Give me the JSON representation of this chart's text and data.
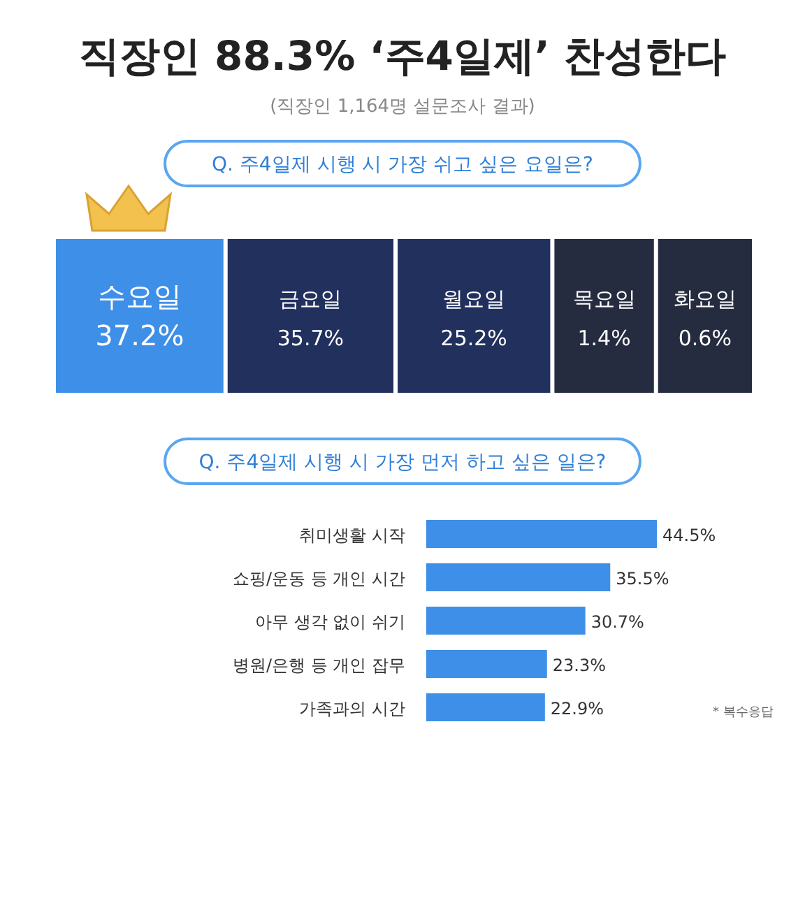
{
  "chart_data": [
    {
      "type": "other",
      "title": "직장인 88.3% ‘주4일제’ 찬성한다",
      "subtitle": "(직장인 1,164명 설문조사 결과)"
    },
    {
      "type": "other",
      "title": "Q. 주4일제 시행 시 가장 쉬고 싶은 요일은?",
      "categories": [
        "수요일",
        "금요일",
        "월요일",
        "목요일",
        "화요일"
      ],
      "values": [
        37.2,
        35.7,
        25.2,
        1.4,
        0.6
      ],
      "value_labels": [
        "37.2%",
        "35.7%",
        "25.2%",
        "1.4%",
        "0.6%"
      ],
      "colors": [
        "#3d8fe8",
        "#22305e",
        "#22305e",
        "#262c40",
        "#262c40"
      ]
    },
    {
      "type": "bar",
      "orientation": "horizontal",
      "title": "Q. 주4일제 시행 시 가장 먼저 하고 싶은 일은?",
      "categories": [
        "취미생활 시작",
        "쇼핑/운동 등 개인 시간",
        "아무 생각 없이 쉬기",
        "병원/은행 등 개인 잡무",
        "가족과의 시간"
      ],
      "values": [
        44.5,
        35.5,
        30.7,
        23.3,
        22.9
      ],
      "value_labels": [
        "44.5%",
        "35.5%",
        "30.7%",
        "23.3%",
        "22.9%"
      ],
      "color": "#3d8fe8",
      "annotations": [
        "* 복수응답"
      ]
    }
  ]
}
